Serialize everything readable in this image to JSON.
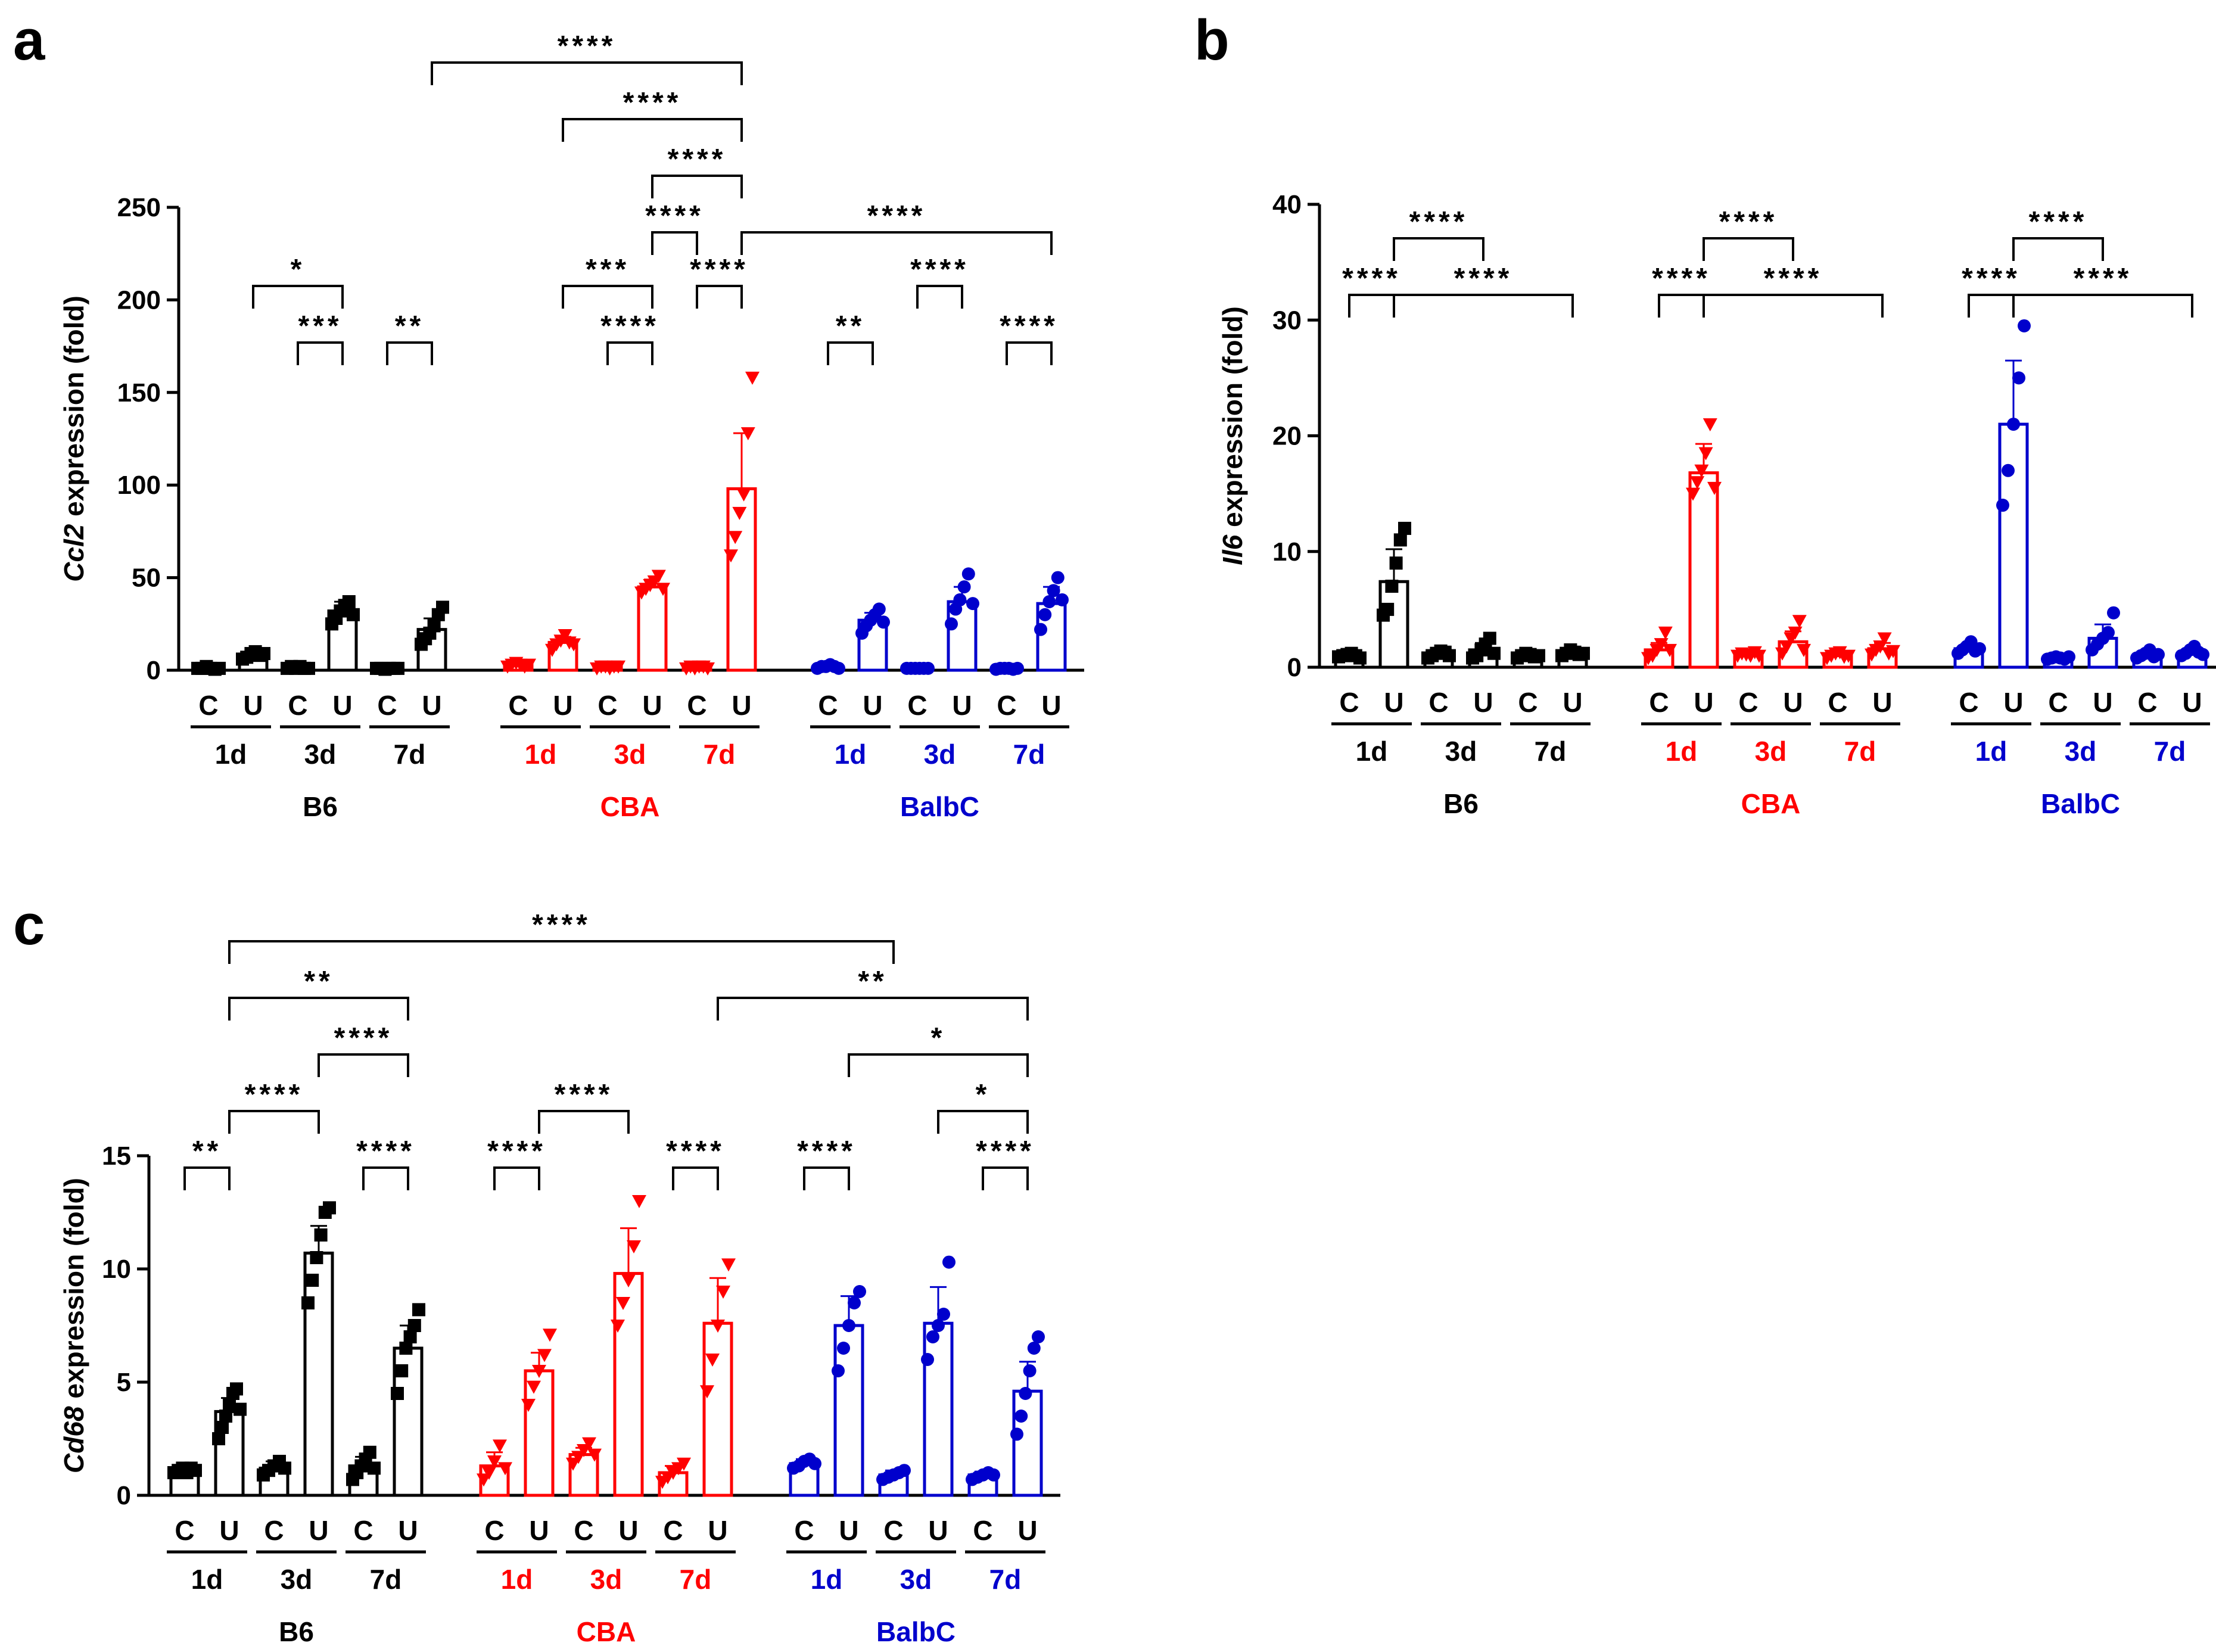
{
  "colors": {
    "B6": "#000000",
    "CBA": "#ff0000",
    "BalbC": "#0000cc"
  },
  "group_labels": [
    "C",
    "U"
  ],
  "time_labels": [
    "1d",
    "3d",
    "7d"
  ],
  "strain_labels": [
    "B6",
    "CBA",
    "BalbC"
  ],
  "chart_data": [
    {
      "panel_label": "a",
      "type": "bar",
      "ylabel_italic": "Ccl2",
      "ylabel_rest": " expression (fold)",
      "ylim": [
        0,
        250
      ],
      "yticks": [
        0,
        50,
        100,
        150,
        200,
        250
      ],
      "categories": [
        "B6 1d C",
        "B6 1d U",
        "B6 3d C",
        "B6 3d U",
        "B6 7d C",
        "B6 7d U",
        "CBA 1d C",
        "CBA 1d U",
        "CBA 3d C",
        "CBA 3d U",
        "CBA 7d C",
        "CBA 7d U",
        "BalbC 1d C",
        "BalbC 1d U",
        "BalbC 3d C",
        "BalbC 3d U",
        "BalbC 7d C",
        "BalbC 7d U"
      ],
      "values": [
        1,
        8,
        1,
        32,
        1,
        22,
        3,
        15,
        2,
        45,
        2,
        98,
        2,
        27,
        1,
        37,
        1,
        36
      ],
      "errors": [
        0.5,
        2,
        0.5,
        5,
        0.5,
        6,
        1,
        3,
        0.5,
        4,
        0.5,
        30,
        0.5,
        4,
        0.5,
        8,
        0.5,
        9
      ],
      "points": [
        [
          1,
          1,
          2,
          1,
          0.5,
          1
        ],
        [
          6,
          7,
          9,
          10,
          8,
          9
        ],
        [
          1,
          2,
          1,
          2,
          1,
          1
        ],
        [
          25,
          28,
          32,
          35,
          37,
          30
        ],
        [
          1,
          1,
          0.5,
          1,
          1,
          1
        ],
        [
          14,
          17,
          20,
          24,
          30,
          34
        ],
        [
          2,
          3,
          4,
          3,
          2,
          3
        ],
        [
          11,
          14,
          16,
          19,
          15,
          14
        ],
        [
          1,
          2,
          2,
          1,
          2,
          2
        ],
        [
          42,
          44,
          46,
          48,
          51,
          44
        ],
        [
          1,
          2,
          1,
          2,
          2,
          1
        ],
        [
          62,
          72,
          85,
          95,
          128,
          158
        ],
        [
          1,
          2,
          2,
          3,
          2,
          1
        ],
        [
          20,
          24,
          27,
          30,
          33,
          26
        ],
        [
          1,
          1,
          1,
          1,
          1,
          1
        ],
        [
          25,
          33,
          38,
          45,
          52,
          36
        ],
        [
          0.5,
          1,
          1,
          1,
          0.5,
          1
        ],
        [
          22,
          30,
          37,
          43,
          50,
          38
        ]
      ],
      "annotations": [
        {
          "from": 5,
          "to": 11,
          "text": "****"
        },
        {
          "from": 7,
          "to": 11,
          "text": "****"
        },
        {
          "from": 9,
          "to": 11,
          "text": "****"
        },
        {
          "from": 9,
          "to": 10,
          "text": "****"
        },
        {
          "from": 11,
          "to": 17,
          "text": "****"
        },
        {
          "from": 1,
          "to": 3,
          "text": "*"
        },
        {
          "from": 7,
          "to": 9,
          "text": "***"
        },
        {
          "from": 10,
          "to": 11,
          "text": "****"
        },
        {
          "from": 14,
          "to": 15,
          "text": "****"
        },
        {
          "from": 2,
          "to": 3,
          "text": "***"
        },
        {
          "from": 4,
          "to": 5,
          "text": "**"
        },
        {
          "from": 8,
          "to": 9,
          "text": "****"
        },
        {
          "from": 12,
          "to": 13,
          "text": "**"
        },
        {
          "from": 16,
          "to": 17,
          "text": "****"
        }
      ]
    },
    {
      "panel_label": "b",
      "type": "bar",
      "ylabel_italic": "Il6",
      "ylabel_rest": " expression (fold)",
      "ylim": [
        0,
        40
      ],
      "yticks": [
        0,
        10,
        20,
        30,
        40
      ],
      "categories": [
        "B6 1d C",
        "B6 1d U",
        "B6 3d C",
        "B6 3d U",
        "B6 7d C",
        "B6 7d U",
        "CBA 1d C",
        "CBA 1d U",
        "CBA 3d C",
        "CBA 3d U",
        "CBA 7d C",
        "CBA 7d U",
        "BalbC 1d C",
        "BalbC 1d U",
        "BalbC 3d C",
        "BalbC 3d U",
        "BalbC 7d C",
        "BalbC 7d U"
      ],
      "values": [
        1,
        7.4,
        1.1,
        1.5,
        1,
        1.2,
        1.5,
        16.8,
        1.1,
        2.2,
        1,
        1.6,
        1.6,
        21,
        0.8,
        2.5,
        1,
        1.3
      ],
      "errors": [
        0.2,
        2.8,
        0.3,
        0.6,
        0.2,
        0.2,
        0.6,
        2.5,
        0.2,
        0.9,
        0.3,
        0.5,
        0.4,
        5.5,
        0.1,
        1.2,
        0.3,
        0.3
      ],
      "points": [
        [
          0.9,
          1,
          1.1,
          1.2,
          1,
          0.8
        ],
        [
          4.5,
          5,
          7,
          9,
          11,
          12
        ],
        [
          0.8,
          1,
          1.2,
          1.4,
          1.3,
          1
        ],
        [
          0.8,
          1,
          1.5,
          2,
          2.5,
          1.2
        ],
        [
          0.8,
          1,
          1.2,
          1.1,
          0.9,
          1
        ],
        [
          1,
          1.2,
          1.5,
          1.3,
          1.1,
          1.2
        ],
        [
          0.8,
          1,
          1.5,
          2,
          3,
          1.5
        ],
        [
          15,
          16,
          17,
          18.5,
          21,
          15.5
        ],
        [
          1,
          1.2,
          1.1,
          1,
          1.3,
          1
        ],
        [
          1.2,
          1.8,
          2.5,
          3,
          4,
          1.5
        ],
        [
          0.8,
          1,
          1.2,
          1.3,
          0.9,
          1
        ],
        [
          1.1,
          1.5,
          1.8,
          2.5,
          1.2,
          1.4
        ],
        [
          1.2,
          1.5,
          1.8,
          2.2,
          1.4,
          1.6
        ],
        [
          14,
          17,
          21,
          25,
          29.5
        ],
        [
          0.7,
          0.8,
          0.9,
          0.8,
          0.7,
          0.9
        ],
        [
          1.5,
          2,
          2.5,
          3,
          4.7
        ],
        [
          0.8,
          1,
          1.2,
          1.5,
          0.9,
          1.1
        ],
        [
          1,
          1.2,
          1.5,
          1.8,
          1.3,
          1.1
        ]
      ],
      "annotations": [
        {
          "from": 1,
          "to": 3,
          "text": "****"
        },
        {
          "from": 7,
          "to": 9,
          "text": "****"
        },
        {
          "from": 13,
          "to": 15,
          "text": "****"
        },
        {
          "from": 0,
          "to": 1,
          "text": "****"
        },
        {
          "from": 1,
          "to": 5,
          "text": "****"
        },
        {
          "from": 6,
          "to": 7,
          "text": "****"
        },
        {
          "from": 7,
          "to": 11,
          "text": "****"
        },
        {
          "from": 12,
          "to": 13,
          "text": "****"
        },
        {
          "from": 13,
          "to": 17,
          "text": "****"
        }
      ]
    },
    {
      "panel_label": "c",
      "type": "bar",
      "ylabel_italic": "Cd68",
      "ylabel_rest": " expression (fold)",
      "ylim": [
        0,
        15
      ],
      "yticks": [
        0,
        5,
        10,
        15
      ],
      "categories": [
        "B6 1d C",
        "B6 1d U",
        "B6 3d C",
        "B6 3d U",
        "B6 7d C",
        "B6 7d U",
        "CBA 1d C",
        "CBA 1d U",
        "CBA 3d C",
        "CBA 3d U",
        "CBA 7d C",
        "CBA 7d U",
        "BalbC 1d C",
        "BalbC 1d U",
        "BalbC 3d C",
        "BalbC 3d U",
        "BalbC 7d C",
        "BalbC 7d U"
      ],
      "values": [
        1.1,
        3.7,
        1.2,
        10.7,
        1.3,
        6.5,
        1.3,
        5.5,
        1.8,
        9.8,
        1,
        7.6,
        1.4,
        7.5,
        0.9,
        7.6,
        0.9,
        4.6
      ],
      "errors": [
        0.15,
        0.6,
        0.3,
        1.2,
        0.4,
        1,
        0.6,
        0.8,
        0.3,
        2,
        0.3,
        2,
        0.2,
        1.3,
        0.2,
        1.6,
        0.15,
        1.3
      ],
      "points": [
        [
          1,
          1.1,
          1.2,
          1,
          1.2,
          1.1
        ],
        [
          2.5,
          3,
          3.5,
          4,
          4.5,
          4.7,
          3.8
        ],
        [
          0.9,
          1.1,
          1.3,
          1.5,
          1.2
        ],
        [
          8.5,
          9.5,
          10.5,
          11.5,
          12.5,
          12.7
        ],
        [
          0.7,
          1,
          1.3,
          1.6,
          1.9,
          1.2
        ],
        [
          4.5,
          5.5,
          6.5,
          7,
          7.5,
          8.2
        ],
        [
          0.7,
          1,
          1.5,
          2.2,
          1.2
        ],
        [
          4,
          4.8,
          5.5,
          6.2,
          7.1
        ],
        [
          1.4,
          1.7,
          2,
          2.3,
          1.8
        ],
        [
          7.5,
          8.5,
          9.5,
          11,
          13
        ],
        [
          0.6,
          0.8,
          1,
          1.2,
          1.4
        ],
        [
          4.6,
          6,
          7.5,
          9,
          10.2
        ],
        [
          1.2,
          1.3,
          1.5,
          1.6,
          1.4
        ],
        [
          5.5,
          6.5,
          7.5,
          8.5,
          9
        ],
        [
          0.7,
          0.8,
          0.9,
          1,
          1.1
        ],
        [
          6,
          7,
          7.5,
          8,
          10.3
        ],
        [
          0.7,
          0.8,
          0.9,
          1,
          0.9
        ],
        [
          2.7,
          3.5,
          4.5,
          5.5,
          6.5,
          7
        ]
      ],
      "annotations": [
        {
          "from": 1,
          "to": 14,
          "text": "****"
        },
        {
          "from": 1,
          "to": 5,
          "text": "**"
        },
        {
          "from": 11,
          "to": 17,
          "text": "**"
        },
        {
          "from": 3,
          "to": 5,
          "text": "****"
        },
        {
          "from": 13,
          "to": 17,
          "text": "*"
        },
        {
          "from": 1,
          "to": 3,
          "text": "****"
        },
        {
          "from": 7,
          "to": 9,
          "text": "****"
        },
        {
          "from": 15,
          "to": 17,
          "text": "*"
        },
        {
          "from": 0,
          "to": 1,
          "text": "**"
        },
        {
          "from": 4,
          "to": 5,
          "text": "****"
        },
        {
          "from": 6,
          "to": 7,
          "text": "****"
        },
        {
          "from": 10,
          "to": 11,
          "text": "****"
        },
        {
          "from": 12,
          "to": 13,
          "text": "****"
        },
        {
          "from": 16,
          "to": 17,
          "text": "****"
        }
      ]
    }
  ]
}
